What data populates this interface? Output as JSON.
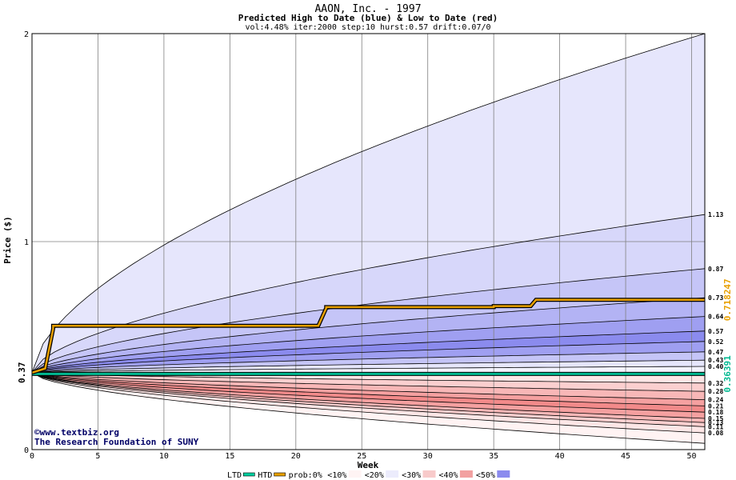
{
  "chart_data": {
    "type": "area",
    "title": "AAON, Inc. - 1997",
    "subtitle": "Predicted High to Date (blue) &  Low to Date (red)",
    "params": "vol:4.48% iter:2000 step:10 hurst:0.57 drift:0.07/0",
    "xlabel": "Week",
    "ylabel": "Price ($)",
    "xlim": [
      0,
      51
    ],
    "ylim": [
      0,
      2
    ],
    "x_ticks": [
      0,
      5,
      10,
      15,
      20,
      25,
      30,
      35,
      40,
      45,
      50
    ],
    "y_ticks": [
      0,
      1,
      2
    ],
    "start_price": 0.37,
    "start_price_label": "0.37",
    "grid": true,
    "high_quantiles": [
      {
        "end": 2.0,
        "label": "",
        "fill": "#f3f3fe"
      },
      {
        "end": 1.13,
        "label": "1.13",
        "fill": "#e6e6fc"
      },
      {
        "end": 0.87,
        "label": "0.87",
        "fill": "#d7d7fa"
      },
      {
        "end": 0.73,
        "label": "0.73",
        "fill": "#c5c5f7"
      },
      {
        "end": 0.64,
        "label": "0.64",
        "fill": "#b3b3f4"
      },
      {
        "end": 0.57,
        "label": "0.57",
        "fill": "#9f9ff1"
      },
      {
        "end": 0.52,
        "label": "0.52",
        "fill": "#8b8bee"
      },
      {
        "end": 0.47,
        "label": "0.47",
        "fill": "#9f9ff1"
      },
      {
        "end": 0.43,
        "label": "0.43",
        "fill": "#c5c5f7"
      },
      {
        "end": 0.4,
        "label": "0.40",
        "fill": "#e6e6fc"
      }
    ],
    "low_quantiles": [
      {
        "end": 0.32,
        "label": "0.32",
        "fill": "#fde6e6"
      },
      {
        "end": 0.28,
        "label": "0.28",
        "fill": "#fbcfcf"
      },
      {
        "end": 0.24,
        "label": "0.24",
        "fill": "#f8b7b7"
      },
      {
        "end": 0.21,
        "label": "0.21",
        "fill": "#f5a0a0"
      },
      {
        "end": 0.18,
        "label": "0.18",
        "fill": "#f28a8a"
      },
      {
        "end": 0.15,
        "label": "0.15",
        "fill": "#f5a0a0"
      },
      {
        "end": 0.13,
        "label": "0.13",
        "fill": "#f8b7b7"
      },
      {
        "end": 0.11,
        "label": "0.11",
        "fill": "#fbcfcf"
      },
      {
        "end": 0.08,
        "label": "0.08",
        "fill": "#fde6e6"
      },
      {
        "end": 0.03,
        "label": "",
        "fill": "#fff3f3"
      }
    ],
    "htd_series": {
      "name": "HTD",
      "x": [
        0,
        1,
        1.6,
        1.6,
        21.7,
        22.3,
        22.3,
        35,
        35,
        37.8,
        38.2,
        51
      ],
      "y": [
        0.37,
        0.39,
        0.58,
        0.595,
        0.595,
        0.68,
        0.685,
        0.685,
        0.69,
        0.69,
        0.72,
        0.72
      ],
      "final_label": "0.718247",
      "color": "#e8a000"
    },
    "ltd_series": {
      "name": "LTD",
      "x": [
        0,
        51
      ],
      "y": [
        0.3639,
        0.3639
      ],
      "final_label": "0.36391",
      "color": "#00b890"
    },
    "legend": {
      "placement": "bottom",
      "items": [
        {
          "label": "LTD",
          "color": "#00d0a0"
        },
        {
          "label": "HTD",
          "color": "#e8a000"
        },
        {
          "label": "prob:0%",
          "color": ""
        },
        {
          "label": "<10%",
          "color": "#fff4f4"
        },
        {
          "label": "<20%",
          "color": "#ececfc"
        },
        {
          "label": "<30%",
          "color": "#f8caca"
        },
        {
          "label": "<40%",
          "color": "#f2a0a0"
        },
        {
          "label": "<50%",
          "color": "#8b8bee"
        }
      ]
    }
  },
  "credits": {
    "line1": "©www.textbiz.org",
    "line2": "The Research Foundation of SUNY"
  }
}
